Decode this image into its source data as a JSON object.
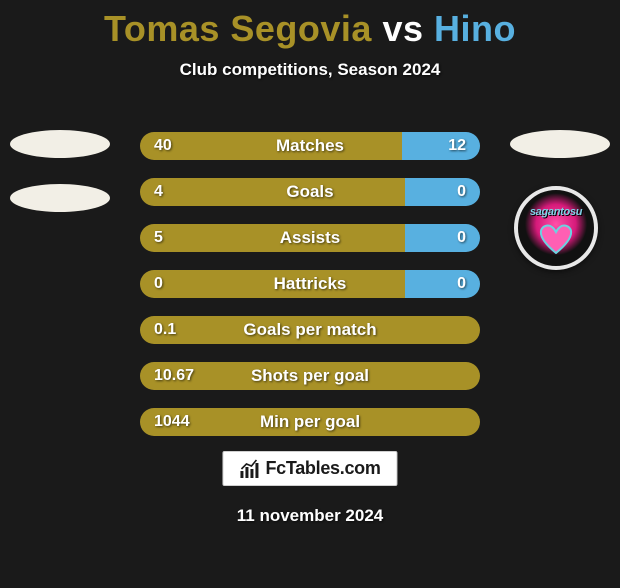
{
  "header": {
    "player1": "Tomas Segovia",
    "vs": " vs ",
    "player2": "Hino",
    "player1_color": "#a89127",
    "vs_color": "#ffffff",
    "player2_color": "#58b0e0",
    "subtitle": "Club competitions, Season 2024"
  },
  "colors": {
    "bar_left": "#a89127",
    "bar_right": "#58b0e0",
    "bar_full": "#a89127",
    "badge_ellipse": "#f2efe6"
  },
  "bars": [
    {
      "label": "Matches",
      "left_val": "40",
      "right_val": "12",
      "left_pct": 77,
      "right_colored": true
    },
    {
      "label": "Goals",
      "left_val": "4",
      "right_val": "0",
      "left_pct": 78,
      "right_colored": true
    },
    {
      "label": "Assists",
      "left_val": "5",
      "right_val": "0",
      "left_pct": 78,
      "right_colored": true
    },
    {
      "label": "Hattricks",
      "left_val": "0",
      "right_val": "0",
      "left_pct": 78,
      "right_colored": true
    },
    {
      "label": "Goals per match",
      "left_val": "0.1",
      "right_val": "",
      "left_pct": 100,
      "right_colored": false
    },
    {
      "label": "Shots per goal",
      "left_val": "10.67",
      "right_val": "",
      "left_pct": 100,
      "right_colored": false
    },
    {
      "label": "Min per goal",
      "left_val": "1044",
      "right_val": "",
      "left_pct": 100,
      "right_colored": false
    }
  ],
  "club_badge": {
    "text": "sagantosu"
  },
  "brand": {
    "text": "FcTables.com"
  },
  "footer_date": "11 november 2024"
}
